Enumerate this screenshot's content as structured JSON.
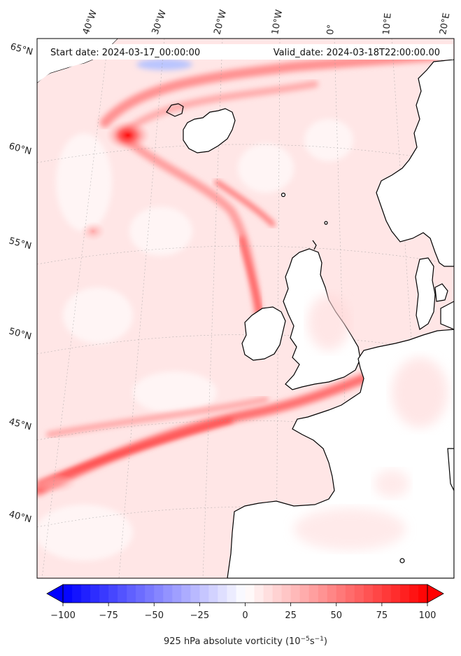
{
  "map": {
    "header": {
      "start_label": "Start date: 2024-03-17_00:00:00",
      "valid_label": "Valid_date: 2024-03-18T22:00:00.00"
    },
    "lon_labels": [
      "40°W",
      "30°W",
      "20°W",
      "10°W",
      "0°",
      "10°E",
      "20°E"
    ],
    "lat_labels": [
      "65°N",
      "60°N",
      "55°N",
      "50°N",
      "45°N",
      "40°N"
    ],
    "colorbar": {
      "ticks": [
        "−100",
        "−75",
        "−50",
        "−25",
        "0",
        "25",
        "50",
        "75",
        "100"
      ],
      "min": -100,
      "max": 100,
      "label": "925 hPa absolute vorticity (10",
      "label_sup1": "−5",
      "label_mid": "s",
      "label_sup2": "−1",
      "label_end": ")",
      "cmap": "bwr",
      "extend": "both"
    },
    "colors": {
      "low": "#0000ff",
      "mid": "#ffffff",
      "high": "#ff0000"
    }
  }
}
